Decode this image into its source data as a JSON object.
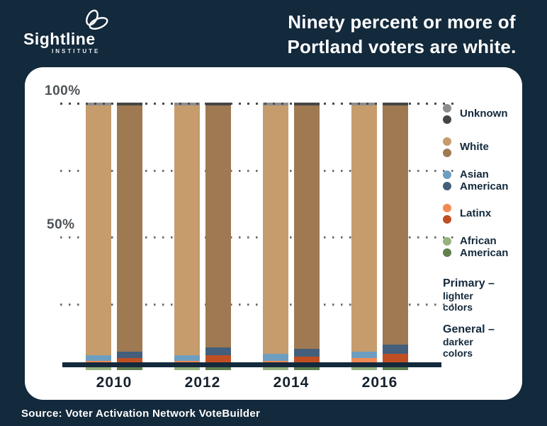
{
  "header": {
    "logo": {
      "name": "Sightline",
      "sub": "INSTITUTE"
    },
    "title_lines": [
      "Ninety percent or more of",
      "Portland voters are white."
    ]
  },
  "footer": {
    "source": "Source: Voter Activation Network VoteBuilder"
  },
  "colors": {
    "background_navy": "#13293C",
    "card": "#ffffff",
    "gridline_dot": "#6f6f6f",
    "axis_line": "#13293C",
    "tick_text": "#4e5357",
    "year_text": "#15222e",
    "legend_text": "#13293C"
  },
  "chart_data": {
    "type": "bar",
    "stacked": true,
    "unit": "percent",
    "title": "Ninety percent or more of Portland voters are white.",
    "categories": [
      "2010",
      "2012",
      "2014",
      "2016"
    ],
    "bar_variants": [
      {
        "id": "primary",
        "label": "Primary",
        "note": "lighter colors"
      },
      {
        "id": "general",
        "label": "General",
        "note": "darker colors"
      }
    ],
    "ylim": [
      0,
      100
    ],
    "gridlines_percent": [
      100,
      75,
      50,
      25
    ],
    "y_ticks": [
      {
        "label": "100%",
        "percent": 100
      },
      {
        "label": "50%",
        "percent": 50
      }
    ],
    "stack_order_bottom_to_top": [
      "African American",
      "Latinx",
      "Asian American",
      "White",
      "Unknown"
    ],
    "series": [
      {
        "name": "African American",
        "primary_color": "#96b27d",
        "general_color": "#60804f",
        "primary": [
          2,
          2,
          2,
          2.5
        ],
        "general": [
          2.5,
          3,
          2.5,
          3
        ]
      },
      {
        "name": "Latinx",
        "primary_color": "#f28a55",
        "general_color": "#bf4f23",
        "primary": [
          1.5,
          1.5,
          1.5,
          2
        ],
        "general": [
          2,
          2.5,
          2.5,
          3
        ]
      },
      {
        "name": "Asian American",
        "primary_color": "#6d9ec0",
        "general_color": "#435f7b",
        "primary": [
          2,
          2,
          2.5,
          2.5
        ],
        "general": [
          2.5,
          3,
          3,
          3.5
        ]
      },
      {
        "name": "White",
        "primary_color": "#c69c6d",
        "general_color": "#9e7952",
        "primary": [
          93.5,
          93.5,
          93,
          92
        ],
        "general": [
          92,
          90.5,
          91,
          89.5
        ]
      },
      {
        "name": "Unknown",
        "primary_color": "#8d8d8d",
        "general_color": "#454545",
        "primary": [
          1,
          1,
          1,
          1
        ],
        "general": [
          1,
          1,
          1,
          1
        ]
      }
    ]
  },
  "legend": {
    "entries": [
      {
        "name": "Unknown",
        "light": "#8d8d8d",
        "dark": "#454545"
      },
      {
        "name": "White",
        "light": "#c69c6d",
        "dark": "#9e7952"
      },
      {
        "name": "Asian American",
        "light": "#6d9ec0",
        "dark": "#435f7b"
      },
      {
        "name": "Latinx",
        "light": "#f28a55",
        "dark": "#bf4f23"
      },
      {
        "name": "African American",
        "light": "#96b27d",
        "dark": "#60804f"
      }
    ],
    "notes": [
      {
        "title": "Primary –",
        "lines": [
          "lighter",
          "colors"
        ]
      },
      {
        "title": "General –",
        "lines": [
          "darker",
          "colors"
        ]
      }
    ]
  }
}
